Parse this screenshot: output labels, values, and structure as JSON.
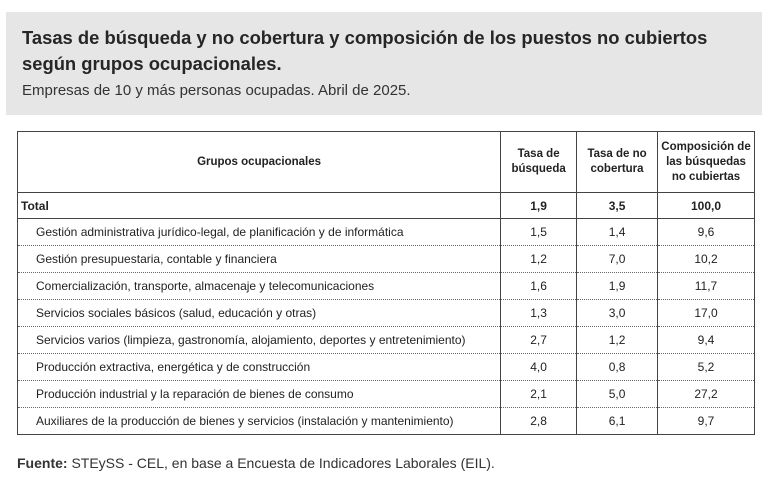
{
  "header": {
    "title": "Tasas de búsqueda y no cobertura y composición de los puestos no cubiertos según grupos ocupacionales.",
    "subtitle": "Empresas de 10 y más personas ocupadas. Abril de 2025."
  },
  "table": {
    "columns": [
      "Grupos ocupacionales",
      "Tasa de búsqueda",
      "Tasa de no cobertura",
      "Composición de las búsquedas no cubiertas"
    ],
    "total": {
      "name": "Total",
      "busqueda": "1,9",
      "cobertura": "3,5",
      "composicion": "100,0"
    },
    "rows": [
      {
        "name": "Gestión administrativa jurídico-legal, de planificación y de informática",
        "busqueda": "1,5",
        "cobertura": "1,4",
        "composicion": "9,6"
      },
      {
        "name": "Gestión presupuestaria, contable y financiera",
        "busqueda": "1,2",
        "cobertura": "7,0",
        "composicion": "10,2"
      },
      {
        "name": "Comercialización, transporte, almacenaje y telecomunicaciones",
        "busqueda": "1,6",
        "cobertura": "1,9",
        "composicion": "11,7"
      },
      {
        "name": "Servicios sociales básicos (salud, educación y otras)",
        "busqueda": "1,3",
        "cobertura": "3,0",
        "composicion": "17,0"
      },
      {
        "name": "Servicios varios (limpieza, gastronomía, alojamiento, deportes y entretenimiento)",
        "busqueda": "2,7",
        "cobertura": "1,2",
        "composicion": "9,4"
      },
      {
        "name": "Producción extractiva, energética y de construcción",
        "busqueda": "4,0",
        "cobertura": "0,8",
        "composicion": "5,2"
      },
      {
        "name": "Producción industrial y la reparación de bienes de consumo",
        "busqueda": "2,1",
        "cobertura": "5,0",
        "composicion": "27,2"
      },
      {
        "name": "Auxiliares de la producción de bienes y servicios (instalación y mantenimiento)",
        "busqueda": "2,8",
        "cobertura": "6,1",
        "composicion": "9,7"
      }
    ]
  },
  "footer": {
    "label": "Fuente:",
    "text": " STEySS - CEL, en base a Encuesta de Indicadores Laborales (EIL)."
  }
}
